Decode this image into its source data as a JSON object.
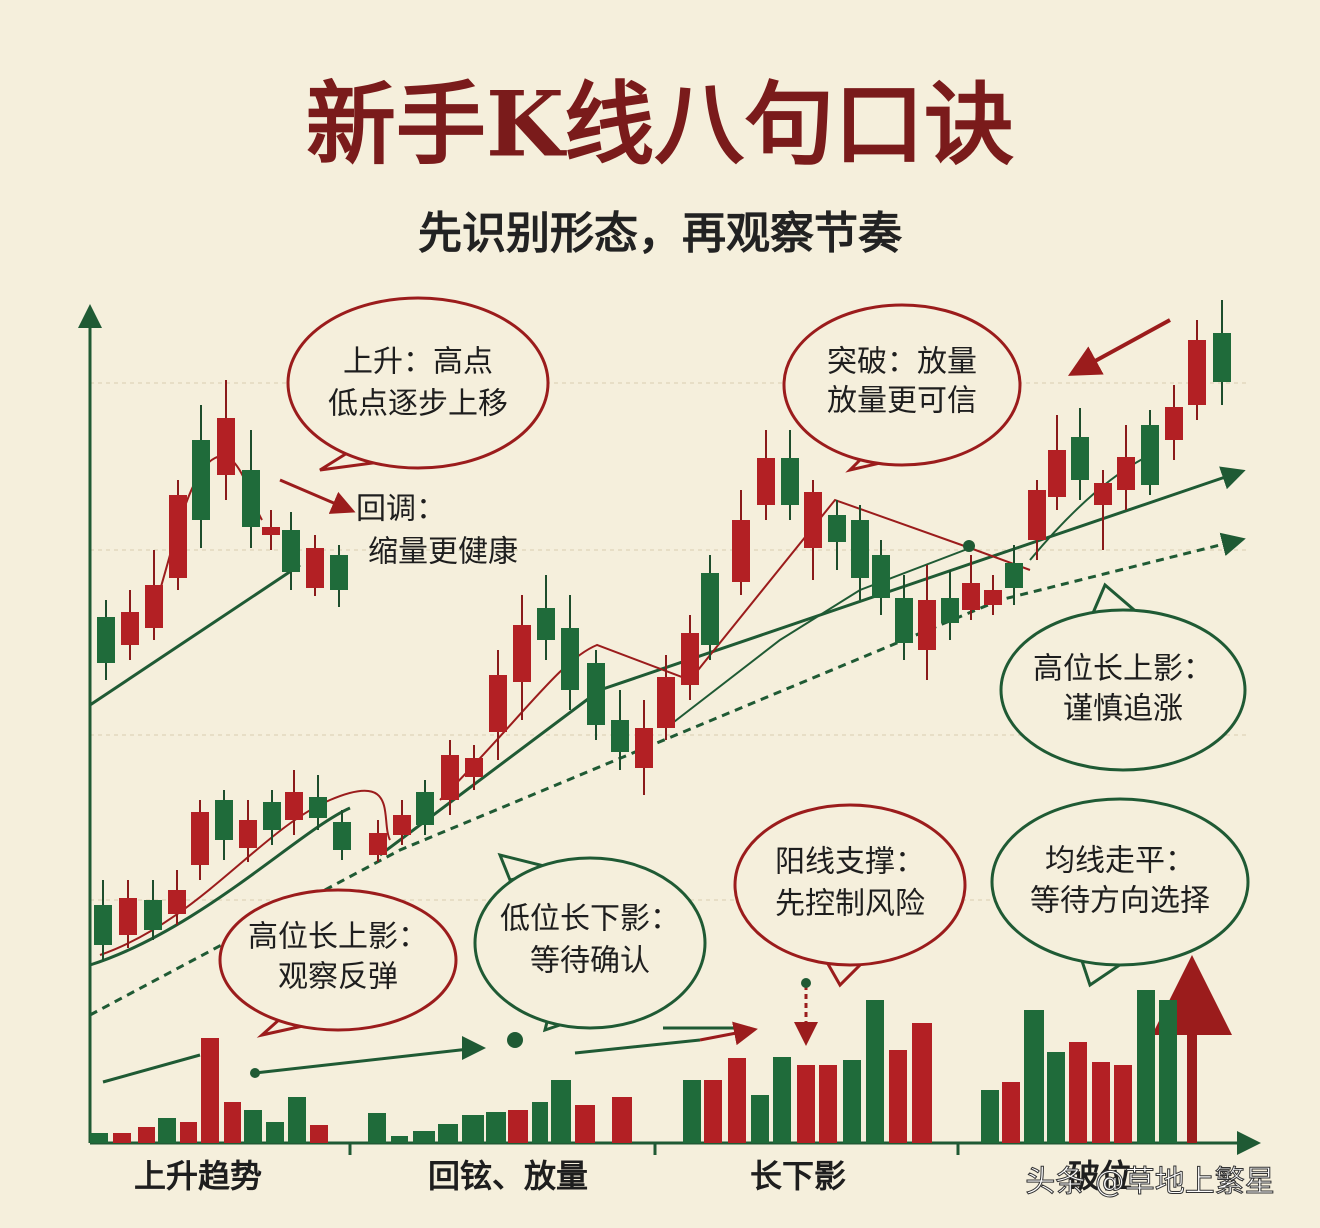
{
  "title": "新手K线八句口诀",
  "subtitle": "先识别形态，再观察节奏",
  "callouts": [
    {
      "lines": [
        "上升：高点",
        "低点逐步上移"
      ]
    },
    {
      "lines": [
        "回调：",
        "缩量更健康"
      ]
    },
    {
      "lines": [
        "突破：放量",
        "放量更可信"
      ]
    },
    {
      "lines": [
        "高位长上影：",
        "谨慎追涨"
      ]
    },
    {
      "lines": [
        "高位长上影：",
        "观察反弹"
      ]
    },
    {
      "lines": [
        "低位长下影：",
        "等待确认"
      ]
    },
    {
      "lines": [
        "阳线支撑：",
        "先控制风险"
      ]
    },
    {
      "lines": [
        "均线走平：",
        "等待方向选择"
      ]
    }
  ],
  "x_labels": [
    "上升趋势",
    "回铉、放量",
    "长下影",
    "破位"
  ],
  "watermark": "头条 @草地上繁星"
}
